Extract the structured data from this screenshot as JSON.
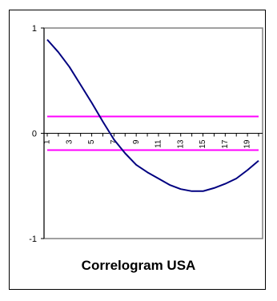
{
  "chart_data": {
    "type": "line",
    "title": "Correlogram USA",
    "xlabel": "",
    "ylabel": "",
    "ylim": [
      -1,
      1
    ],
    "y_ticks": [
      "1",
      "0",
      "-1"
    ],
    "x": [
      1,
      2,
      3,
      4,
      5,
      6,
      7,
      8,
      9,
      10,
      11,
      12,
      13,
      14,
      15,
      16,
      17,
      18,
      19,
      20
    ],
    "x_tick_labels": [
      "1",
      "3",
      "5",
      "7",
      "9",
      "11",
      "13",
      "15",
      "17",
      "19"
    ],
    "series": [
      {
        "values": [
          0.89,
          0.77,
          0.63,
          0.46,
          0.29,
          0.11,
          -0.06,
          -0.19,
          -0.3,
          -0.37,
          -0.43,
          -0.49,
          -0.53,
          -0.55,
          -0.55,
          -0.52,
          -0.48,
          -0.43,
          -0.35,
          -0.26
        ]
      }
    ],
    "reference_lines": [
      0.16,
      -0.16
    ],
    "colors": {
      "series": "#000080",
      "reference": "#ff00ff",
      "plot_border": "#808080"
    },
    "grid": false,
    "legend": "none"
  }
}
